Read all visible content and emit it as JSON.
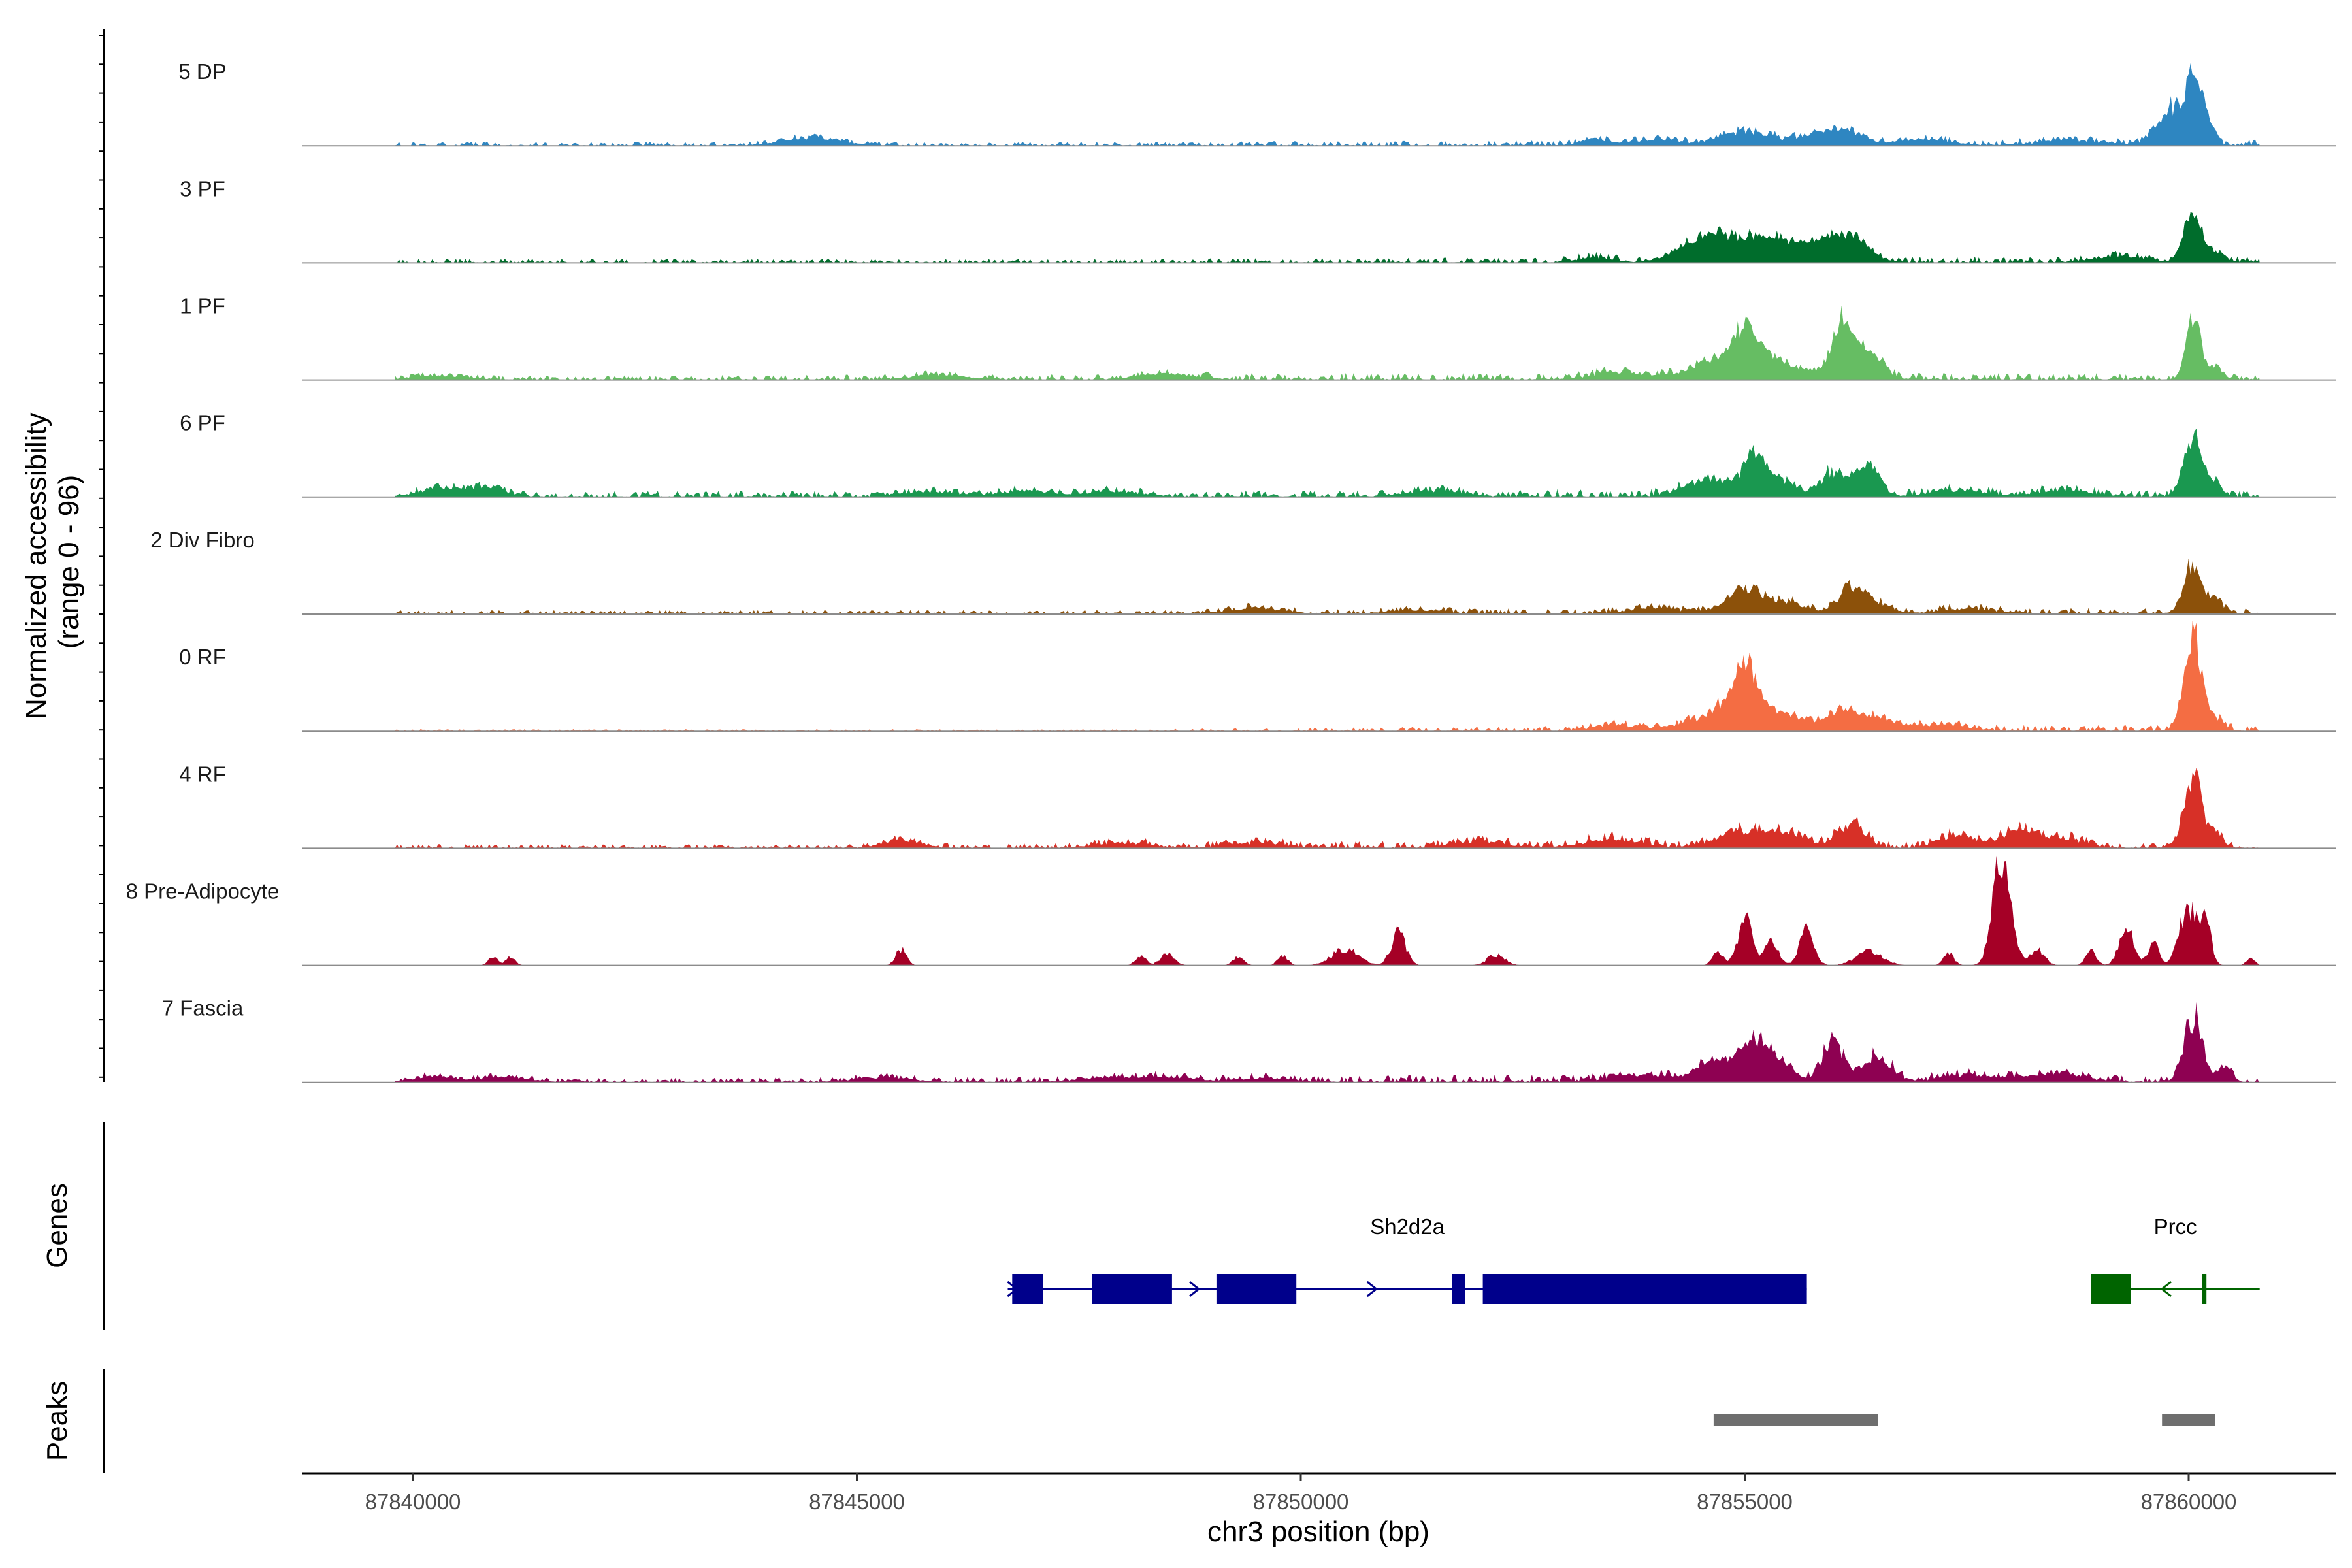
{
  "chart_data": {
    "type": "area",
    "title": "",
    "xlabel": "chr3 position (bp)",
    "ylabel": "Normalized accessibility\n(range 0 - 96)",
    "ylabel_lines": [
      "Normalized accessibility",
      "(range 0 - 96)"
    ],
    "y_range": [
      0,
      96
    ],
    "xlim": [
      87838600,
      87861600
    ],
    "x_ticks": [
      87840000,
      87845000,
      87850000,
      87855000,
      87860000
    ],
    "x_tick_labels": [
      "87840000",
      "87845000",
      "87850000",
      "87855000",
      "87860000"
    ],
    "data_start": 87839800,
    "data_end": 87860800,
    "series": [
      {
        "name": "5 DP",
        "color": "#2e86c1",
        "baseline": [
          [
            87840000,
            2
          ],
          [
            87845000,
            2
          ],
          [
            87848000,
            2
          ],
          [
            87855000,
            3
          ],
          [
            87860800,
            3
          ]
        ],
        "peaks": [
          [
            87844500,
            7,
            300
          ],
          [
            87853300,
            5,
            150
          ],
          [
            87854000,
            5,
            250
          ],
          [
            87855000,
            12,
            250
          ],
          [
            87855800,
            7,
            300
          ],
          [
            87856100,
            9,
            200
          ],
          [
            87857000,
            5,
            300
          ],
          [
            87858700,
            4,
            400
          ],
          [
            87859800,
            30,
            150
          ],
          [
            87860050,
            55,
            80
          ],
          [
            87860200,
            22,
            80
          ]
        ]
      },
      {
        "name": "3 PF",
        "color": "#006d2c",
        "baseline": [
          [
            87840000,
            2
          ],
          [
            87848000,
            2
          ],
          [
            87854000,
            3
          ],
          [
            87860800,
            3
          ]
        ],
        "peaks": [
          [
            87855000,
            20,
            400
          ],
          [
            87854500,
            12,
            250
          ],
          [
            87855500,
            9,
            200
          ],
          [
            87856200,
            22,
            200
          ],
          [
            87855900,
            12,
            150
          ],
          [
            87853300,
            4,
            200
          ],
          [
            87859200,
            5,
            300
          ],
          [
            87860050,
            40,
            100
          ],
          [
            87860300,
            9,
            100
          ]
        ]
      },
      {
        "name": "1 PF",
        "color": "#66bd63",
        "baseline": [
          [
            87840000,
            2
          ],
          [
            87848000,
            3
          ],
          [
            87854000,
            4
          ],
          [
            87860800,
            3
          ]
        ],
        "peaks": [
          [
            87840300,
            3,
            300
          ],
          [
            87845900,
            4,
            300
          ],
          [
            87848500,
            5,
            300
          ],
          [
            87853600,
            6,
            300
          ],
          [
            87855000,
            30,
            150
          ],
          [
            87854700,
            15,
            300
          ],
          [
            87855300,
            14,
            200
          ],
          [
            87856100,
            45,
            120
          ],
          [
            87856400,
            22,
            150
          ],
          [
            87855700,
            6,
            200
          ],
          [
            87860050,
            55,
            80
          ],
          [
            87860300,
            10,
            80
          ]
        ]
      },
      {
        "name": "6 PF",
        "color": "#1a9850",
        "baseline": [
          [
            87840000,
            3
          ],
          [
            87848000,
            3
          ],
          [
            87854000,
            4
          ],
          [
            87860800,
            3
          ]
        ],
        "peaks": [
          [
            87840300,
            8,
            200
          ],
          [
            87840800,
            8,
            200
          ],
          [
            87845800,
            4,
            300
          ],
          [
            87846900,
            5,
            300
          ],
          [
            87847900,
            4,
            300
          ],
          [
            87851500,
            5,
            300
          ],
          [
            87854600,
            15,
            250
          ],
          [
            87855100,
            33,
            120
          ],
          [
            87855400,
            14,
            150
          ],
          [
            87856000,
            20,
            150
          ],
          [
            87856400,
            28,
            120
          ],
          [
            87857400,
            5,
            300
          ],
          [
            87858600,
            5,
            300
          ],
          [
            87860050,
            50,
            100
          ],
          [
            87860300,
            12,
            80
          ]
        ]
      },
      {
        "name": "2 Div Fibro",
        "color": "#8c510a",
        "baseline": [
          [
            87840000,
            2
          ],
          [
            87848000,
            2
          ],
          [
            87854000,
            3
          ],
          [
            87860800,
            3
          ]
        ],
        "peaks": [
          [
            87849500,
            5,
            300
          ],
          [
            87851300,
            3,
            300
          ],
          [
            87854000,
            4,
            300
          ],
          [
            87855000,
            22,
            200
          ],
          [
            87855500,
            8,
            200
          ],
          [
            87856200,
            22,
            150
          ],
          [
            87856500,
            8,
            150
          ],
          [
            87857500,
            4,
            300
          ],
          [
            87860050,
            40,
            100
          ],
          [
            87860300,
            10,
            80
          ]
        ]
      },
      {
        "name": "0 RF",
        "color": "#f46d43",
        "baseline": [
          [
            87840000,
            1
          ],
          [
            87848000,
            1
          ],
          [
            87854000,
            3
          ],
          [
            87860800,
            3
          ]
        ],
        "peaks": [
          [
            87853500,
            5,
            200
          ],
          [
            87854800,
            15,
            400
          ],
          [
            87855000,
            43,
            150
          ],
          [
            87855500,
            10,
            250
          ],
          [
            87856100,
            18,
            150
          ],
          [
            87856500,
            10,
            200
          ],
          [
            87857200,
            5,
            300
          ],
          [
            87860050,
            80,
            100
          ],
          [
            87860300,
            10,
            100
          ]
        ]
      },
      {
        "name": "4 RF",
        "color": "#d73027",
        "baseline": [
          [
            87840000,
            2
          ],
          [
            87845000,
            2
          ],
          [
            87848000,
            3
          ],
          [
            87854000,
            4
          ],
          [
            87860800,
            3
          ]
        ],
        "peaks": [
          [
            87845500,
            7,
            200
          ],
          [
            87848000,
            4,
            300
          ],
          [
            87849500,
            4,
            300
          ],
          [
            87852000,
            5,
            300
          ],
          [
            87853500,
            7,
            300
          ],
          [
            87855000,
            14,
            300
          ],
          [
            87855500,
            9,
            200
          ],
          [
            87856200,
            22,
            150
          ],
          [
            87857400,
            10,
            200
          ],
          [
            87858100,
            14,
            200
          ],
          [
            87858600,
            8,
            200
          ],
          [
            87860050,
            60,
            100
          ],
          [
            87860300,
            12,
            80
          ]
        ]
      },
      {
        "name": "8 Pre-Adipocyte",
        "color": "#a50026",
        "baseline": [
          [
            87840000,
            0
          ],
          [
            87860800,
            0
          ]
        ],
        "peaks": [
          [
            87840900,
            8,
            50
          ],
          [
            87841100,
            8,
            50
          ],
          [
            87845500,
            14,
            60
          ],
          [
            87848200,
            8,
            60
          ],
          [
            87848500,
            10,
            80
          ],
          [
            87849300,
            8,
            60
          ],
          [
            87849800,
            8,
            60
          ],
          [
            87850500,
            14,
            150
          ],
          [
            87851100,
            28,
            80
          ],
          [
            87852200,
            9,
            100
          ],
          [
            87854700,
            12,
            60
          ],
          [
            87855000,
            40,
            80
          ],
          [
            87855300,
            20,
            80
          ],
          [
            87855700,
            30,
            80
          ],
          [
            87856400,
            12,
            150
          ],
          [
            87857300,
            10,
            60
          ],
          [
            87857900,
            95,
            100
          ],
          [
            87858300,
            14,
            80
          ],
          [
            87858900,
            14,
            60
          ],
          [
            87859300,
            35,
            80
          ],
          [
            87859600,
            20,
            60
          ],
          [
            87860000,
            50,
            100
          ],
          [
            87860200,
            32,
            60
          ],
          [
            87860700,
            6,
            50
          ]
        ]
      },
      {
        "name": "7 Fascia",
        "color": "#8e0152",
        "baseline": [
          [
            87840000,
            2
          ],
          [
            87848000,
            3
          ],
          [
            87854000,
            4
          ],
          [
            87860800,
            3
          ]
        ],
        "peaks": [
          [
            87840200,
            5,
            200
          ],
          [
            87841000,
            4,
            300
          ],
          [
            87845300,
            4,
            300
          ],
          [
            87847800,
            4,
            300
          ],
          [
            87848500,
            4,
            300
          ],
          [
            87849600,
            3,
            300
          ],
          [
            87853800,
            6,
            300
          ],
          [
            87854700,
            15,
            250
          ],
          [
            87855100,
            32,
            150
          ],
          [
            87855400,
            14,
            150
          ],
          [
            87856000,
            35,
            120
          ],
          [
            87856500,
            22,
            150
          ],
          [
            87857500,
            6,
            300
          ],
          [
            87858500,
            8,
            300
          ],
          [
            87860050,
            55,
            100
          ],
          [
            87860400,
            12,
            80
          ]
        ]
      }
    ],
    "genes_track_label": "Genes",
    "peaks_track_label": "Peaks",
    "genes": [
      {
        "name": "Sh2d2a",
        "strand": "+",
        "color": "#00008b",
        "start": 87846700,
        "end": 87855700,
        "exons": [
          [
            87846750,
            87847100
          ],
          [
            87847650,
            87848550
          ],
          [
            87849050,
            87849950
          ],
          [
            87851700,
            87851850
          ],
          [
            87852050,
            87855700
          ]
        ],
        "arrows": [
          87846750,
          87848800,
          87850800
        ]
      },
      {
        "name": "Prcc",
        "strand": "-",
        "color": "#006400",
        "start": 87858900,
        "end": 87860800,
        "exons": [
          [
            87858900,
            87859350
          ],
          [
            87860150,
            87860200
          ]
        ],
        "arrows": [
          87859750
        ]
      }
    ],
    "peak_regions": [
      [
        87854650,
        87856500
      ],
      [
        87859700,
        87860300
      ]
    ],
    "peak_color": "#6e6e6e"
  }
}
